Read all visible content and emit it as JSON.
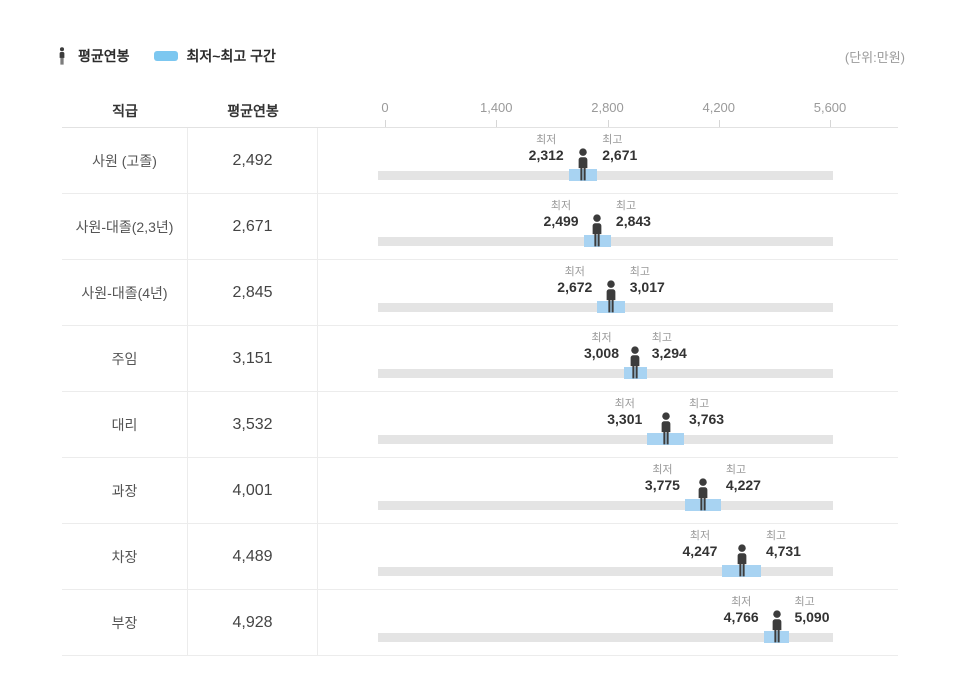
{
  "legend": {
    "avg_label": "평균연봉",
    "range_label": "최저~최고 구간",
    "unit_label": "(단위:만원)"
  },
  "table": {
    "col_grade": "직급",
    "col_avg": "평균연봉",
    "min_label": "최저",
    "max_label": "최고"
  },
  "colors": {
    "legend_swatch": "#7cc7f0",
    "range_fill": "#a8d3f2",
    "track": "#e4e4e4",
    "icon": "#3c3c3c"
  },
  "chart_data": {
    "type": "bar",
    "subtype": "horizontal-range",
    "unit": "만원",
    "xlim": [
      0,
      5600
    ],
    "x_tick_values": [
      0,
      1400,
      2800,
      4200,
      5600
    ],
    "x_tick_labels": [
      "0",
      "1,400",
      "2,800",
      "4,200",
      "5,600"
    ],
    "categories": [
      "사원 (고졸)",
      "사원-대졸(2,3년)",
      "사원-대졸(4년)",
      "주임",
      "대리",
      "과장",
      "차장",
      "부장"
    ],
    "series": [
      {
        "name": "평균연봉",
        "values": [
          2492,
          2671,
          2845,
          3151,
          3532,
          4001,
          4489,
          4928
        ]
      },
      {
        "name": "최저",
        "values": [
          2312,
          2499,
          2672,
          3008,
          3301,
          3775,
          4247,
          4766
        ]
      },
      {
        "name": "최고",
        "values": [
          2671,
          2843,
          3017,
          3294,
          3763,
          4227,
          4731,
          5090
        ]
      }
    ],
    "legend_position": "top",
    "grid": false
  }
}
